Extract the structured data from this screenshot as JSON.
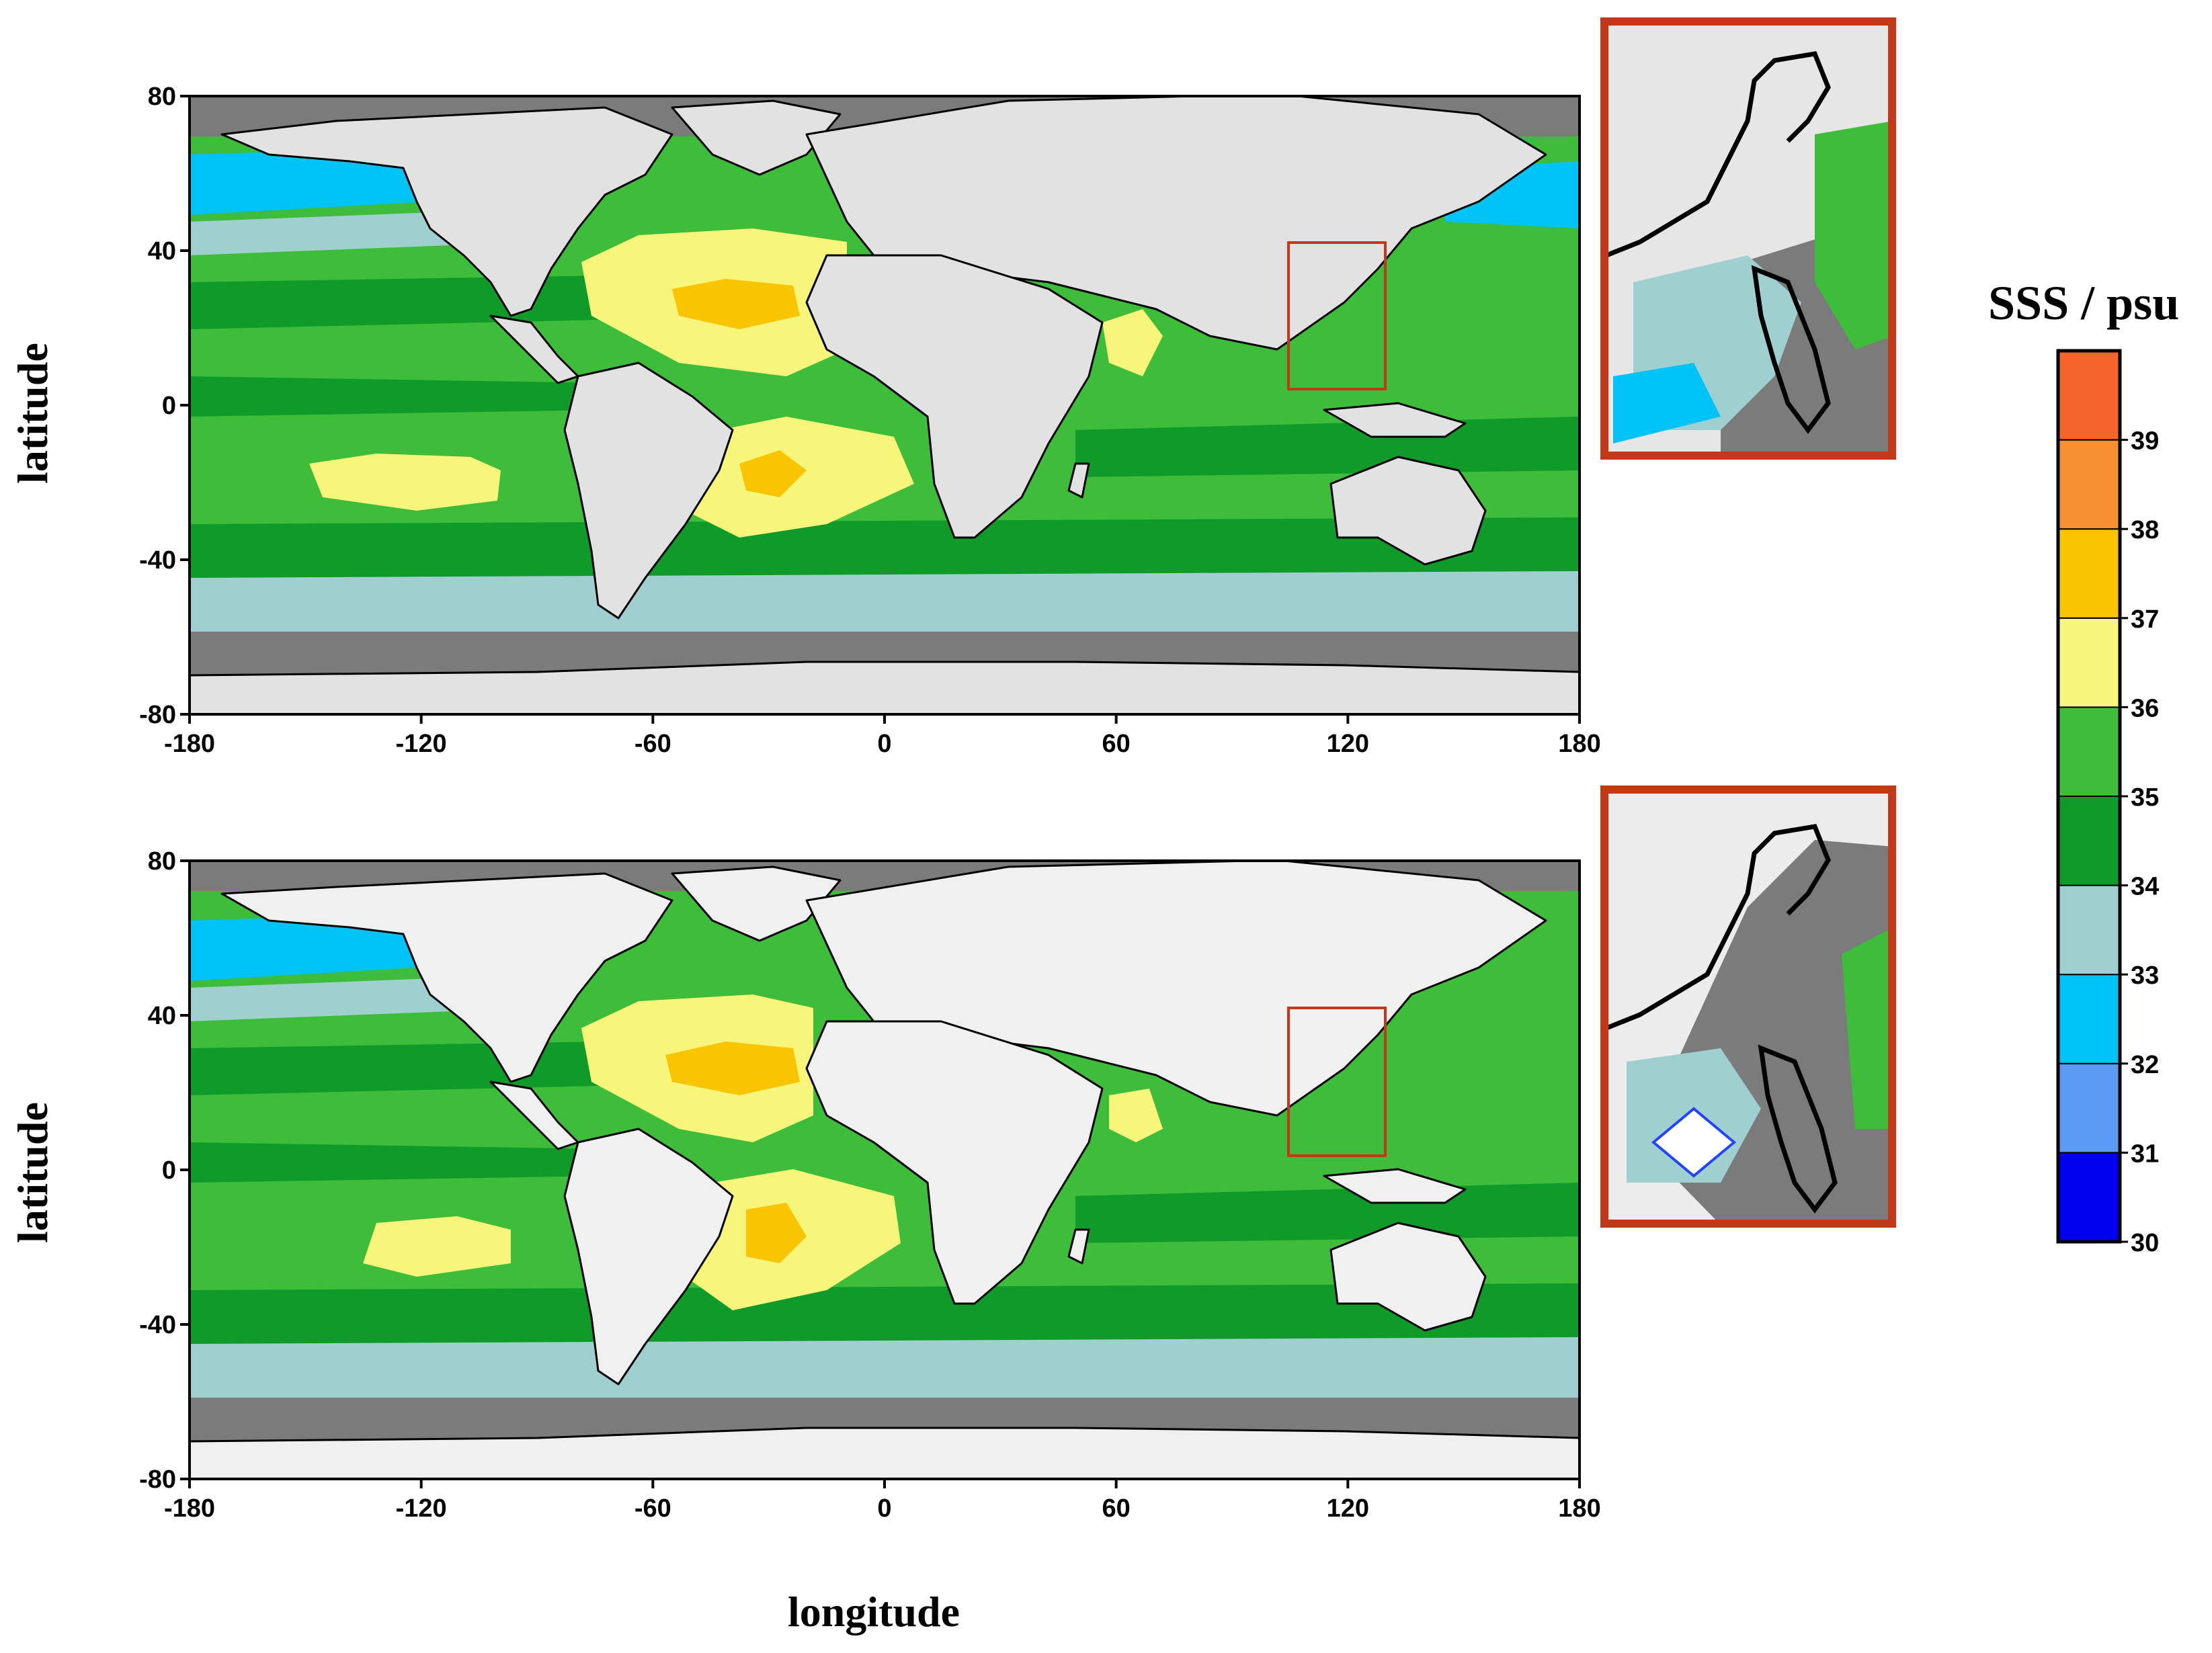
{
  "figure": {
    "ylabel_top": "latitude",
    "ylabel_bottom": "latitude",
    "xlabel": "longitude",
    "colorbar_title": "SSS / psu"
  },
  "axes": {
    "x_ticks": [
      "-180",
      "-120",
      "-60",
      "0",
      "60",
      "120",
      "180"
    ],
    "y_ticks": [
      "80",
      "40",
      "0",
      "-40",
      "-80"
    ],
    "xlim": [
      -180,
      180
    ],
    "ylim": [
      -80,
      80
    ]
  },
  "colorbar": {
    "ticks": [
      "30",
      "31",
      "32",
      "33",
      "34",
      "35",
      "36",
      "37",
      "38",
      "39"
    ],
    "bins": [
      {
        "range": [
          30,
          31
        ],
        "color": "#0000ee"
      },
      {
        "range": [
          31,
          32
        ],
        "color": "#5b9bf5"
      },
      {
        "range": [
          32,
          33
        ],
        "color": "#00c3f5"
      },
      {
        "range": [
          33,
          34
        ],
        "color": "#9fcfcf"
      },
      {
        "range": [
          34,
          35
        ],
        "color": "#0f9a2a"
      },
      {
        "range": [
          35,
          36
        ],
        "color": "#3dbd3a"
      },
      {
        "range": [
          36,
          37
        ],
        "color": "#f7f57a"
      },
      {
        "range": [
          37,
          38
        ],
        "color": "#f9c400"
      },
      {
        "range": [
          38,
          39
        ],
        "color": "#f79030"
      },
      {
        "range": [
          39,
          40
        ],
        "color": "#f5642a"
      }
    ]
  },
  "maps": [
    {
      "name": "top-map",
      "inset_box_lon": [
        106,
        130
      ],
      "inset_box_lat": [
        4,
        42
      ]
    },
    {
      "name": "bottom-map",
      "inset_box_lon": [
        106,
        130
      ],
      "inset_box_lat": [
        4,
        42
      ]
    }
  ],
  "colors": {
    "land": "#e2e2e2",
    "no_data": "#7b7b7b",
    "inset_frame": "#c4381a"
  }
}
